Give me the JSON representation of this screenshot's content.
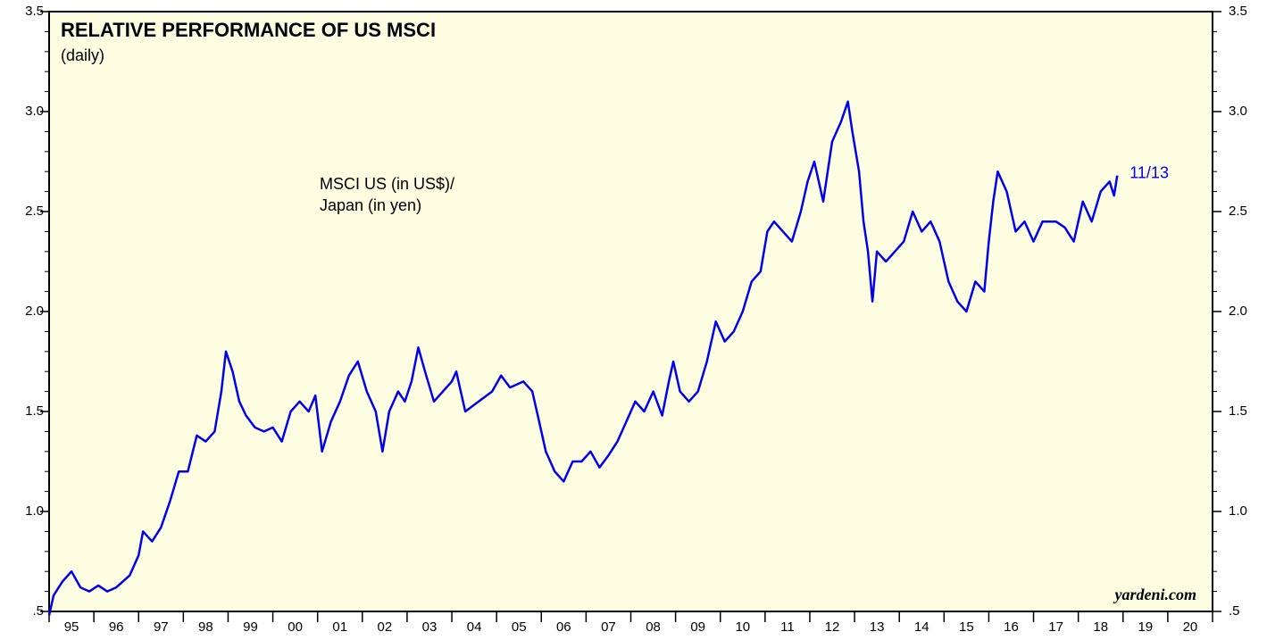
{
  "chart_data": {
    "type": "line",
    "title": "RELATIVE PERFORMANCE OF US MSCI",
    "subtitle": "(daily)",
    "annotation": "MSCI US (in US$)/\nJapan (in yen)",
    "end_label": "11/13",
    "source": "yardeni.com",
    "x": [
      1995.0,
      1995.1,
      1995.3,
      1995.5,
      1995.7,
      1995.9,
      1996.1,
      1996.3,
      1996.5,
      1996.8,
      1997.0,
      1997.1,
      1997.3,
      1997.5,
      1997.7,
      1997.9,
      1998.1,
      1998.3,
      1998.5,
      1998.7,
      1998.85,
      1998.95,
      1999.1,
      1999.25,
      1999.4,
      1999.6,
      1999.8,
      2000.0,
      2000.2,
      2000.4,
      2000.6,
      2000.8,
      2000.95,
      2001.1,
      2001.3,
      2001.5,
      2001.7,
      2001.9,
      2002.1,
      2002.3,
      2002.45,
      2002.6,
      2002.8,
      2002.95,
      2003.1,
      2003.25,
      2003.4,
      2003.6,
      2003.8,
      2004.0,
      2004.1,
      2004.3,
      2004.6,
      2004.9,
      2005.1,
      2005.3,
      2005.6,
      2005.8,
      2005.95,
      2006.1,
      2006.3,
      2006.5,
      2006.7,
      2006.9,
      2007.1,
      2007.3,
      2007.5,
      2007.7,
      2007.9,
      2008.1,
      2008.3,
      2008.5,
      2008.7,
      2008.85,
      2008.95,
      2009.1,
      2009.3,
      2009.5,
      2009.7,
      2009.9,
      2010.1,
      2010.3,
      2010.5,
      2010.7,
      2010.9,
      2011.05,
      2011.2,
      2011.4,
      2011.6,
      2011.8,
      2011.95,
      2012.1,
      2012.3,
      2012.5,
      2012.7,
      2012.85,
      2012.95,
      2013.1,
      2013.2,
      2013.3,
      2013.4,
      2013.5,
      2013.7,
      2013.9,
      2014.1,
      2014.3,
      2014.5,
      2014.7,
      2014.9,
      2015.1,
      2015.3,
      2015.5,
      2015.7,
      2015.9,
      2016.0,
      2016.1,
      2016.2,
      2016.4,
      2016.6,
      2016.8,
      2017.0,
      2017.2,
      2017.5,
      2017.7,
      2017.9,
      2018.1,
      2018.3,
      2018.5,
      2018.7,
      2018.8,
      2018.87
    ],
    "series": [
      {
        "name": "MSCI US (in US$)/Japan (in yen)",
        "color": "#0000ee",
        "values": [
          0.48,
          0.58,
          0.65,
          0.7,
          0.62,
          0.6,
          0.63,
          0.6,
          0.62,
          0.68,
          0.78,
          0.9,
          0.85,
          0.92,
          1.05,
          1.2,
          1.2,
          1.38,
          1.35,
          1.4,
          1.6,
          1.8,
          1.7,
          1.55,
          1.48,
          1.42,
          1.4,
          1.42,
          1.35,
          1.5,
          1.55,
          1.5,
          1.58,
          1.3,
          1.45,
          1.55,
          1.68,
          1.75,
          1.6,
          1.5,
          1.3,
          1.5,
          1.6,
          1.55,
          1.65,
          1.82,
          1.7,
          1.55,
          1.6,
          1.65,
          1.7,
          1.5,
          1.55,
          1.6,
          1.68,
          1.62,
          1.65,
          1.6,
          1.45,
          1.3,
          1.2,
          1.15,
          1.25,
          1.25,
          1.3,
          1.22,
          1.28,
          1.35,
          1.45,
          1.55,
          1.5,
          1.6,
          1.48,
          1.65,
          1.75,
          1.6,
          1.55,
          1.6,
          1.75,
          1.95,
          1.85,
          1.9,
          2.0,
          2.15,
          2.2,
          2.4,
          2.45,
          2.4,
          2.35,
          2.5,
          2.65,
          2.75,
          2.55,
          2.85,
          2.95,
          3.05,
          2.9,
          2.7,
          2.45,
          2.3,
          2.05,
          2.3,
          2.25,
          2.3,
          2.35,
          2.5,
          2.4,
          2.45,
          2.35,
          2.15,
          2.05,
          2.0,
          2.15,
          2.1,
          2.35,
          2.55,
          2.7,
          2.6,
          2.4,
          2.45,
          2.35,
          2.45,
          2.45,
          2.42,
          2.35,
          2.55,
          2.45,
          2.6,
          2.65,
          2.58,
          2.68
        ]
      }
    ],
    "xlim": [
      1995,
      2021
    ],
    "xticks": [
      {
        "value": 1995.5,
        "label": "95"
      },
      {
        "value": 1996.5,
        "label": "96"
      },
      {
        "value": 1997.5,
        "label": "97"
      },
      {
        "value": 1998.5,
        "label": "98"
      },
      {
        "value": 1999.5,
        "label": "99"
      },
      {
        "value": 2000.5,
        "label": "00"
      },
      {
        "value": 2001.5,
        "label": "01"
      },
      {
        "value": 2002.5,
        "label": "02"
      },
      {
        "value": 2003.5,
        "label": "03"
      },
      {
        "value": 2004.5,
        "label": "04"
      },
      {
        "value": 2005.5,
        "label": "05"
      },
      {
        "value": 2006.5,
        "label": "06"
      },
      {
        "value": 2007.5,
        "label": "07"
      },
      {
        "value": 2008.5,
        "label": "08"
      },
      {
        "value": 2009.5,
        "label": "09"
      },
      {
        "value": 2010.5,
        "label": "10"
      },
      {
        "value": 2011.5,
        "label": "11"
      },
      {
        "value": 2012.5,
        "label": "12"
      },
      {
        "value": 2013.5,
        "label": "13"
      },
      {
        "value": 2014.5,
        "label": "14"
      },
      {
        "value": 2015.5,
        "label": "15"
      },
      {
        "value": 2016.5,
        "label": "16"
      },
      {
        "value": 2017.5,
        "label": "17"
      },
      {
        "value": 2018.5,
        "label": "18"
      },
      {
        "value": 2019.5,
        "label": "19"
      },
      {
        "value": 2020.5,
        "label": "20"
      }
    ],
    "ylim": [
      0.5,
      3.5
    ],
    "yticks": [
      {
        "value": 0.5,
        "label": ".5"
      },
      {
        "value": 1.0,
        "label": "1.0"
      },
      {
        "value": 1.5,
        "label": "1.5"
      },
      {
        "value": 2.0,
        "label": "2.0"
      },
      {
        "value": 2.5,
        "label": "2.5"
      },
      {
        "value": 3.0,
        "label": "3.0"
      },
      {
        "value": 3.5,
        "label": "3.5"
      }
    ],
    "background": "#fdfde2"
  }
}
